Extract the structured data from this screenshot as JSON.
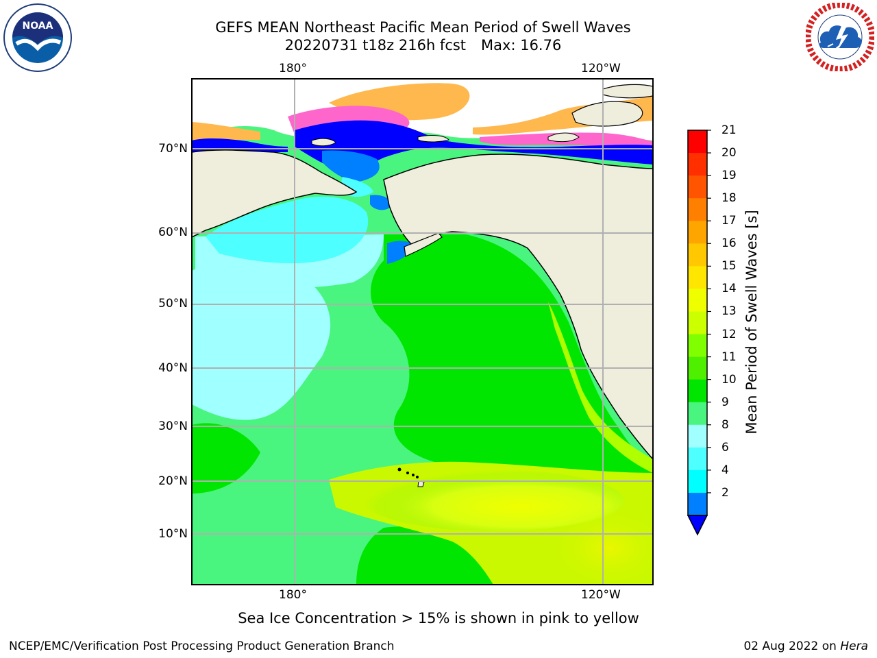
{
  "title": {
    "line1": "GEFS MEAN Northeast Pacific Mean Period of Swell Waves",
    "line2_main": "20220731 t18z 216h fcst",
    "line2_max": "Max: 16.76"
  },
  "logos": {
    "left": {
      "name": "NOAA",
      "text": "NOAA",
      "ring_text": "NATIONAL OCEANIC AND ATMOSPHERIC ADMINISTRATION · U.S. DEPARTMENT OF COMMERCE"
    },
    "right": {
      "name": "National Weather Service",
      "ring_text": "NATIONAL WEATHER SERVICE"
    }
  },
  "map": {
    "lon_labels_top": [
      "180°",
      "120°W"
    ],
    "lon_labels_bottom": [
      "180°",
      "120°W"
    ],
    "lat_labels": [
      "70°N",
      "60°N",
      "50°N",
      "40°N",
      "30°N",
      "20°N",
      "10°N"
    ],
    "land_color": "#efeedd",
    "grid_color": "#b0b0b0"
  },
  "colorbar": {
    "label": "Mean Period of Swell Waves [s]",
    "ticks": [
      "21",
      "20",
      "19",
      "18",
      "17",
      "16",
      "15",
      "14",
      "13",
      "12",
      "11",
      "10",
      "9",
      "8",
      "6",
      "4",
      "2"
    ],
    "colors": [
      "#ff0000",
      "#ff2f00",
      "#ff5500",
      "#ff7f00",
      "#ffa500",
      "#ffc800",
      "#ffe600",
      "#f0ff00",
      "#ccff00",
      "#80ff00",
      "#4ef000",
      "#00e600",
      "#49f57e",
      "#a0ffff",
      "#4effff",
      "#00ffff",
      "#007fff"
    ],
    "extend_color": "#0000ff"
  },
  "caption": "Sea Ice Concentration > 15% is shown in pink to yellow",
  "footer": {
    "left": "NCEP/EMC/Verification Post Processing Product Generation Branch",
    "date": "02 Aug 2022 on",
    "host": "Hera"
  }
}
